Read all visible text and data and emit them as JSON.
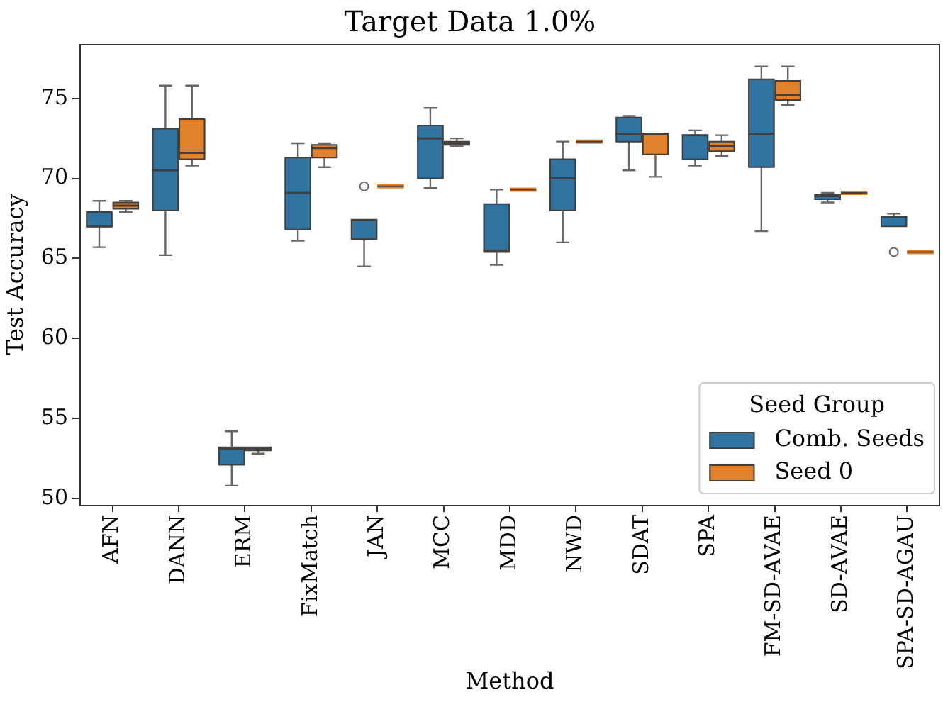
{
  "chart_data": {
    "type": "box",
    "title": "Target Data 1.0%",
    "xlabel": "Method",
    "ylabel": "Test Accuracy",
    "legend_title": "Seed Group",
    "legend": "bottom right",
    "categories": [
      "AFN",
      "DANN",
      "ERM",
      "FixMatch",
      "JAN",
      "MCC",
      "MDD",
      "NWD",
      "SDAT",
      "SPA",
      "FM-SD-AVAE",
      "SD-AVAE",
      "SPA-SD-AGAU"
    ],
    "ylim": [
      49.6,
      78.4
    ],
    "yticks": [
      50,
      55,
      60,
      65,
      70,
      75
    ],
    "series": [
      {
        "name": "Comb. Seeds",
        "color": "#3274a1",
        "boxes": [
          {
            "low": 65.7,
            "q1": 67.0,
            "median": 67.0,
            "q3": 67.9,
            "high": 68.6
          },
          {
            "low": 65.2,
            "q1": 68.0,
            "median": 70.5,
            "q3": 73.1,
            "high": 75.8
          },
          {
            "low": 50.8,
            "q1": 52.1,
            "median": 53.1,
            "q3": 53.2,
            "high": 54.2
          },
          {
            "low": 66.1,
            "q1": 66.8,
            "median": 69.1,
            "q3": 71.3,
            "high": 72.2
          },
          {
            "low": 64.5,
            "q1": 66.2,
            "median": 67.4,
            "q3": 67.4,
            "high": 67.4,
            "outliers": [
              69.5
            ]
          },
          {
            "low": 69.4,
            "q1": 70.0,
            "median": 72.5,
            "q3": 73.3,
            "high": 74.4
          },
          {
            "low": 64.6,
            "q1": 65.4,
            "median": 65.5,
            "q3": 68.4,
            "high": 69.3
          },
          {
            "low": 66.0,
            "q1": 68.0,
            "median": 70.0,
            "q3": 71.2,
            "high": 72.3
          },
          {
            "low": 70.5,
            "q1": 72.3,
            "median": 72.8,
            "q3": 73.8,
            "high": 73.9
          },
          {
            "low": 70.8,
            "q1": 71.2,
            "median": 72.7,
            "q3": 72.7,
            "high": 73.0
          },
          {
            "low": 66.7,
            "q1": 70.7,
            "median": 72.8,
            "q3": 76.2,
            "high": 77.0
          },
          {
            "low": 68.5,
            "q1": 68.7,
            "median": 68.9,
            "q3": 69.0,
            "high": 69.1
          },
          {
            "low": 67.0,
            "q1": 67.0,
            "median": 67.6,
            "q3": 67.6,
            "high": 67.8,
            "outliers": [
              65.4
            ]
          }
        ]
      },
      {
        "name": "Seed 0",
        "color": "#e1812c",
        "boxes": [
          {
            "low": 67.9,
            "q1": 68.1,
            "median": 68.3,
            "q3": 68.5,
            "high": 68.6
          },
          {
            "low": 70.8,
            "q1": 71.2,
            "median": 71.6,
            "q3": 73.7,
            "high": 75.8
          },
          {
            "low": 52.8,
            "q1": 53.0,
            "median": 53.1,
            "q3": 53.2,
            "high": 53.2
          },
          {
            "low": 70.7,
            "q1": 71.3,
            "median": 71.9,
            "q3": 72.1,
            "high": 72.2
          },
          {
            "low": 69.5,
            "q1": 69.5,
            "median": 69.5,
            "q3": 69.5,
            "high": 69.5
          },
          {
            "low": 72.0,
            "q1": 72.1,
            "median": 72.2,
            "q3": 72.3,
            "high": 72.5
          },
          {
            "low": 69.3,
            "q1": 69.3,
            "median": 69.3,
            "q3": 69.3,
            "high": 69.3
          },
          {
            "low": 72.3,
            "q1": 72.3,
            "median": 72.3,
            "q3": 72.3,
            "high": 72.3
          },
          {
            "low": 70.1,
            "q1": 71.5,
            "median": 72.8,
            "q3": 72.8,
            "high": 72.8
          },
          {
            "low": 71.4,
            "q1": 71.7,
            "median": 72.0,
            "q3": 72.3,
            "high": 72.7
          },
          {
            "low": 74.6,
            "q1": 74.9,
            "median": 75.2,
            "q3": 76.1,
            "high": 77.0
          },
          {
            "low": 69.1,
            "q1": 69.1,
            "median": 69.1,
            "q3": 69.1,
            "high": 69.1
          },
          {
            "low": 65.4,
            "q1": 65.4,
            "median": 65.4,
            "q3": 65.4,
            "high": 65.4
          }
        ]
      }
    ]
  }
}
